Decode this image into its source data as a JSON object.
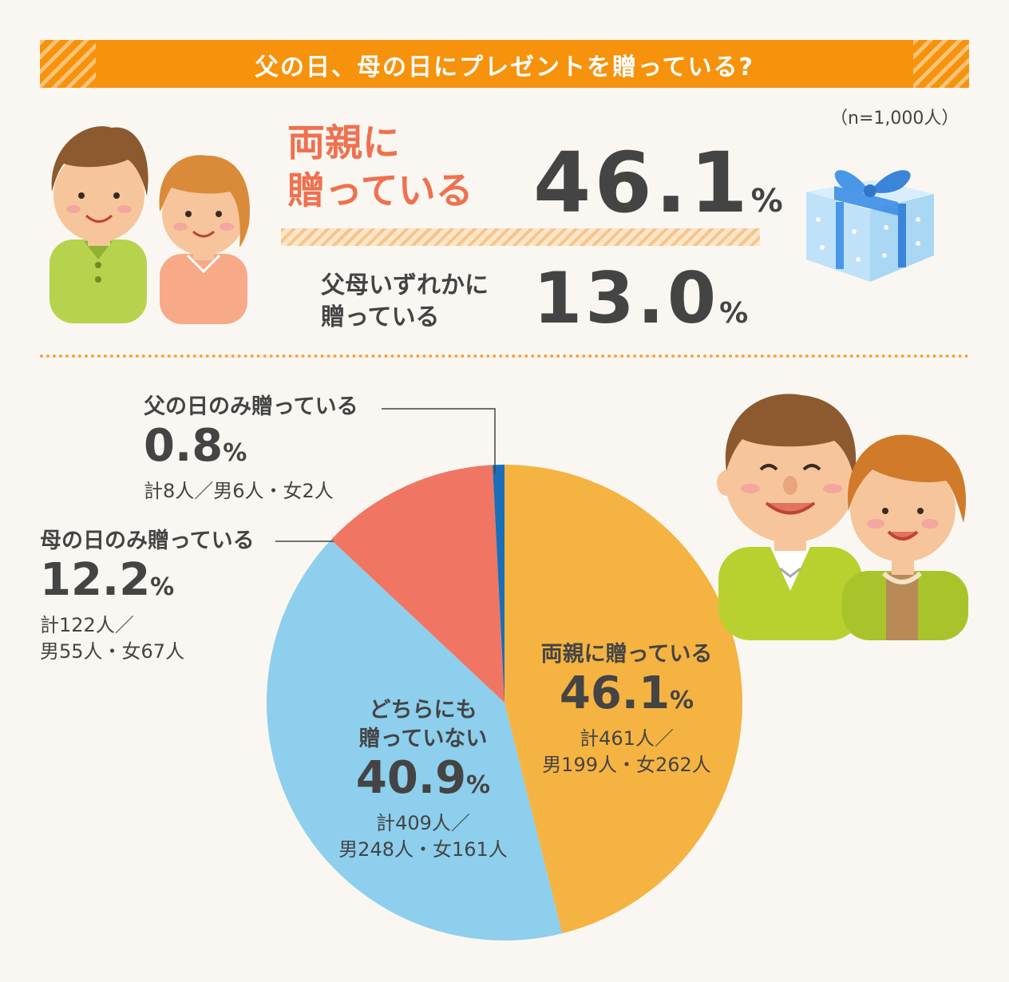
{
  "title": "父の日、母の日にプレゼントを贈っている?",
  "sample": "（n=1,000人）",
  "summary": {
    "both_label_1": "両親に",
    "both_label_2": "贈っている",
    "both_value": "46.1",
    "either_label_1": "父母いずれかに",
    "either_label_2": "贈っている",
    "either_value": "13.0",
    "unit": "%"
  },
  "chart_data": {
    "type": "pie",
    "unit": "%",
    "slices": [
      {
        "label": "両親に贈っている",
        "value": 46.1,
        "count_1": "計461人／",
        "count_2": "男199人・女262人",
        "color": "#f5b342"
      },
      {
        "label_1": "どちらにも",
        "label_2": "贈っていない",
        "value": 40.9,
        "count_1": "計409人／",
        "count_2": "男248人・女161人",
        "color": "#8dcfed"
      },
      {
        "label": "母の日のみ贈っている",
        "value": 12.2,
        "count_1": "計122人／",
        "count_2": "男55人・女67人",
        "color": "#f07563"
      },
      {
        "label": "父の日のみ贈っている",
        "value": 0.8,
        "count_1": "計8人／男6人・女2人",
        "color": "#1a6fb8"
      }
    ]
  },
  "colors": {
    "banner": "#f6920b",
    "accent": "#f0704f",
    "text": "#444444"
  }
}
